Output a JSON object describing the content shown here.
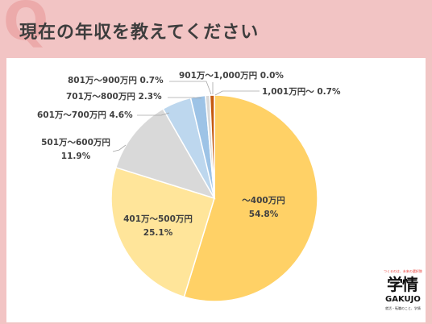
{
  "header": {
    "q_letter": "Q",
    "title": "現在の年収を教えてください"
  },
  "chart_data": {
    "type": "pie",
    "title": "現在の年収を教えてください",
    "start_angle_deg": 0,
    "direction": "clockwise",
    "slices": [
      {
        "label": "～400万円",
        "value": 54.8,
        "value_label": "54.8%",
        "color": "#ffd166"
      },
      {
        "label": "401万～500万円",
        "value": 25.1,
        "value_label": "25.1%",
        "color": "#ffe59a"
      },
      {
        "label": "501万～600万円",
        "value": 11.9,
        "value_label": "11.9%",
        "color": "#d9d9d9"
      },
      {
        "label": "601万～700万円",
        "value": 4.6,
        "value_label": "4.6%",
        "color": "#bdd7ee"
      },
      {
        "label": "701万～800万円",
        "value": 2.3,
        "value_label": "2.3%",
        "color": "#9dc3e6"
      },
      {
        "label": "801万～900万円",
        "value": 0.7,
        "value_label": "0.7%",
        "color": "#d9d9d9"
      },
      {
        "label": "901万～1,000万円",
        "value": 0.0,
        "value_label": "0.0%",
        "color": "#a5a5a5"
      },
      {
        "label": "1,001万円～",
        "value": 0.7,
        "value_label": "0.7%",
        "color": "#c55a11"
      }
    ]
  },
  "logo": {
    "tagline": "つくるのは、未来の選択肢",
    "name": "学情",
    "name_latin": "GAKUJO",
    "footer": "就活・転職のこと、学情"
  }
}
